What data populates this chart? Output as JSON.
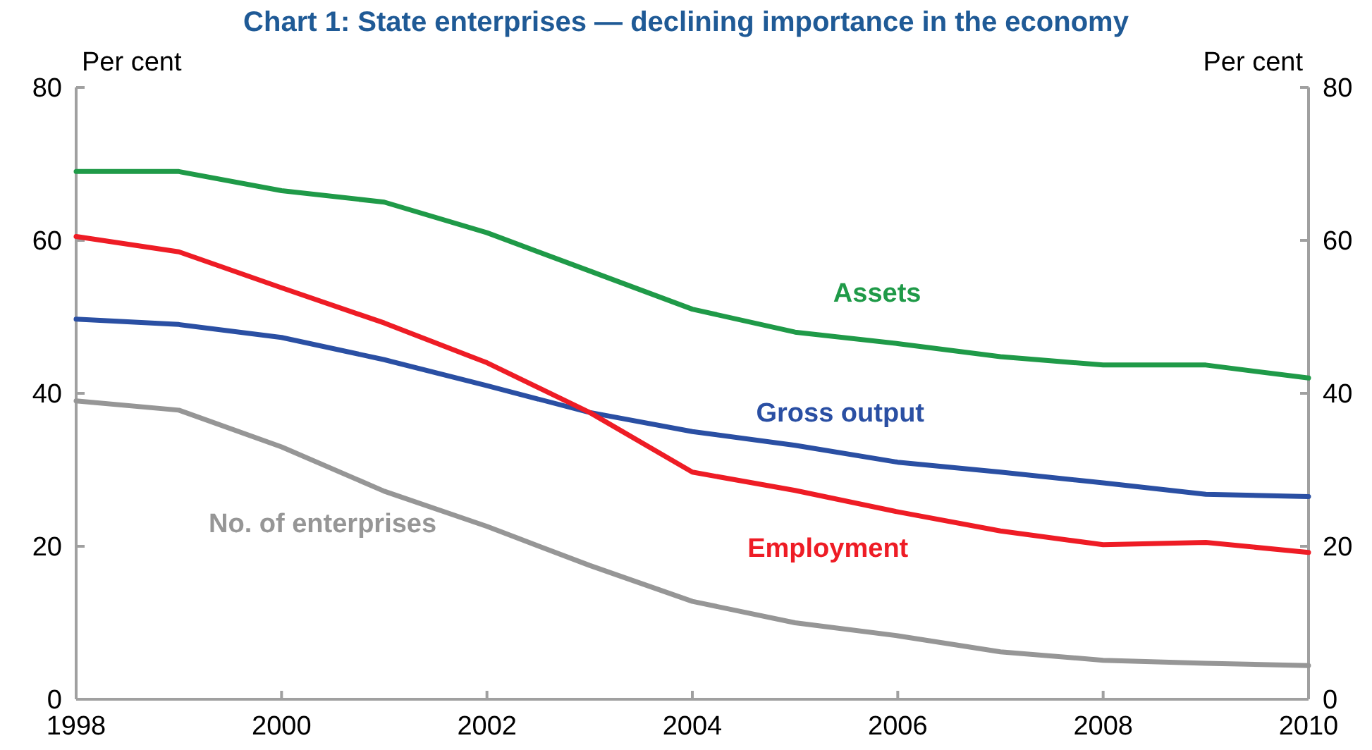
{
  "chart_data": {
    "type": "line",
    "title": "Chart 1: State enterprises — declining importance in the economy",
    "ylabel": "Per cent",
    "y2label": "Per cent",
    "x": [
      1998,
      1999,
      2000,
      2001,
      2002,
      2003,
      2004,
      2005,
      2006,
      2007,
      2008,
      2009,
      2010
    ],
    "series": [
      {
        "name": "Assets",
        "color": "#1f9a48",
        "values": [
          69,
          69,
          66.5,
          65,
          61,
          56,
          51,
          48,
          46.5,
          44.8,
          43.7,
          43.7,
          42
        ]
      },
      {
        "name": "Gross output",
        "color": "#2a4fa3",
        "values": [
          49.7,
          49,
          47.3,
          44.4,
          41,
          37.5,
          35,
          33.2,
          31,
          29.7,
          28.3,
          26.8,
          26.5
        ]
      },
      {
        "name": "Employment",
        "color": "#ee1c25",
        "values": [
          60.5,
          58.5,
          53.8,
          49.2,
          44,
          37.5,
          29.7,
          27.3,
          24.5,
          22,
          20.2,
          20.5,
          19.2
        ]
      },
      {
        "name": "No. of enterprises",
        "color": "#969696",
        "values": [
          39,
          37.8,
          33,
          27.2,
          22.6,
          17.5,
          12.8,
          10,
          8.3,
          6.2,
          5.1,
          4.7,
          4.4
        ]
      }
    ],
    "xlim": [
      1998,
      2010
    ],
    "xticks": [
      1998,
      2000,
      2002,
      2004,
      2006,
      2008,
      2010
    ],
    "ylim": [
      0,
      80
    ],
    "yticks": [
      0,
      20,
      40,
      60,
      80
    ],
    "y2lim": [
      0,
      80
    ],
    "y2ticks": [
      0,
      20,
      40,
      60,
      80
    ],
    "grid": false,
    "legend": false,
    "marker": "none",
    "line_style": "solid"
  }
}
